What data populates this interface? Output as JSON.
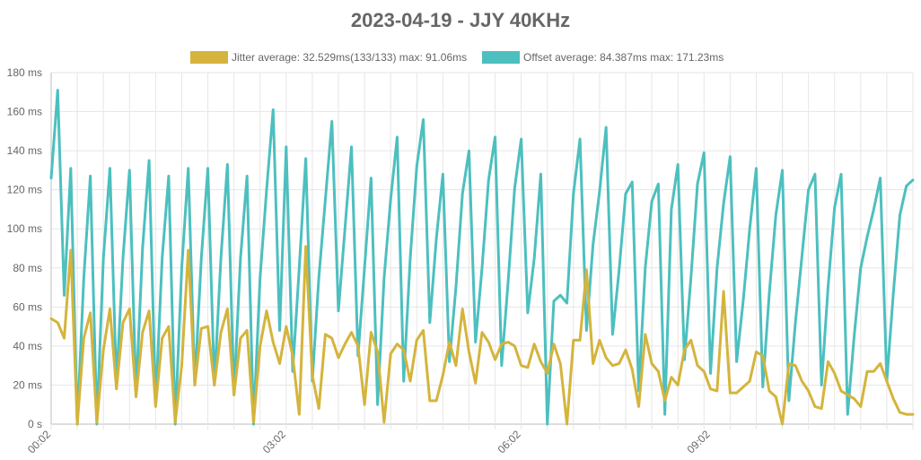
{
  "chart_data": {
    "type": "line",
    "title": "2023-04-19 - JJY 40KHz",
    "xlabel": "",
    "ylabel": "",
    "y_unit": "ms",
    "ylim": [
      0,
      180
    ],
    "y_ticks": [
      0,
      20,
      40,
      60,
      80,
      100,
      120,
      140,
      160,
      180
    ],
    "y_tick_labels": [
      "0 s",
      "20 ms",
      "40 ms",
      "60 ms",
      "80 ms",
      "100 ms",
      "120 ms",
      "140 ms",
      "160 ms",
      "180 ms"
    ],
    "x_count": 133,
    "x_tick_labels": [
      {
        "index": 0,
        "label": "00:02"
      },
      {
        "index": 36,
        "label": "03:02"
      },
      {
        "index": 72,
        "label": "06:02"
      },
      {
        "index": 101,
        "label": "09:02"
      }
    ],
    "grid": true,
    "legend_position": "top",
    "series": [
      {
        "name": "Jitter average: 32.529ms(133/133) max: 91.06ms",
        "color": "#d4b43c",
        "values": [
          54,
          52,
          44,
          89,
          0,
          44,
          57,
          1,
          38,
          59,
          18,
          52,
          59,
          14,
          47,
          58,
          9,
          44,
          50,
          1,
          30,
          89,
          20,
          49,
          50,
          20,
          47,
          59,
          15,
          44,
          48,
          1,
          40,
          58,
          42,
          31,
          50,
          35,
          5,
          91,
          25,
          8,
          46,
          44,
          34,
          41,
          47,
          40,
          10,
          47,
          37,
          1,
          36,
          41,
          38,
          22,
          43,
          48,
          12,
          12,
          25,
          42,
          30,
          59,
          37,
          21,
          47,
          42,
          33,
          41,
          42,
          40,
          30,
          29,
          41,
          32,
          26,
          41,
          31,
          0,
          43,
          43,
          79,
          31,
          43,
          34,
          30,
          31,
          38,
          28,
          9,
          46,
          31,
          27,
          12,
          24,
          20,
          38,
          43,
          30,
          27,
          18,
          17,
          68,
          16,
          16,
          19,
          22,
          37,
          35,
          17,
          14,
          0,
          31,
          30,
          22,
          17,
          9,
          8,
          32,
          26,
          17,
          15,
          13,
          9,
          27,
          27,
          31,
          22,
          13,
          6,
          5,
          5
        ]
      },
      {
        "name": "Offset average: 84.387ms max: 171.23ms",
        "color": "#4dbfbf",
        "values": [
          126,
          171,
          66,
          131,
          0,
          75,
          127,
          0,
          85,
          131,
          20,
          85,
          130,
          15,
          90,
          135,
          10,
          85,
          127,
          0,
          80,
          131,
          20,
          85,
          131,
          20,
          85,
          133,
          15,
          85,
          127,
          0,
          75,
          120,
          161,
          48,
          142,
          27,
          80,
          136,
          22,
          75,
          115,
          155,
          58,
          100,
          142,
          35,
          80,
          126,
          10,
          75,
          115,
          147,
          22,
          85,
          132,
          156,
          52,
          95,
          128,
          32,
          70,
          118,
          140,
          42,
          80,
          125,
          147,
          30,
          73,
          121,
          146,
          57,
          85,
          128,
          0,
          63,
          66,
          62,
          118,
          146,
          48,
          92,
          119,
          152,
          46,
          79,
          118,
          124,
          17,
          80,
          114,
          123,
          5,
          110,
          133,
          33,
          75,
          123,
          139,
          26,
          80,
          113,
          137,
          32,
          63,
          100,
          131,
          19,
          67,
          107,
          130,
          12,
          52,
          86,
          120,
          128,
          20,
          70,
          111,
          128,
          5,
          45,
          80,
          96,
          110,
          126,
          22,
          67,
          107,
          122,
          125
        ]
      }
    ]
  }
}
